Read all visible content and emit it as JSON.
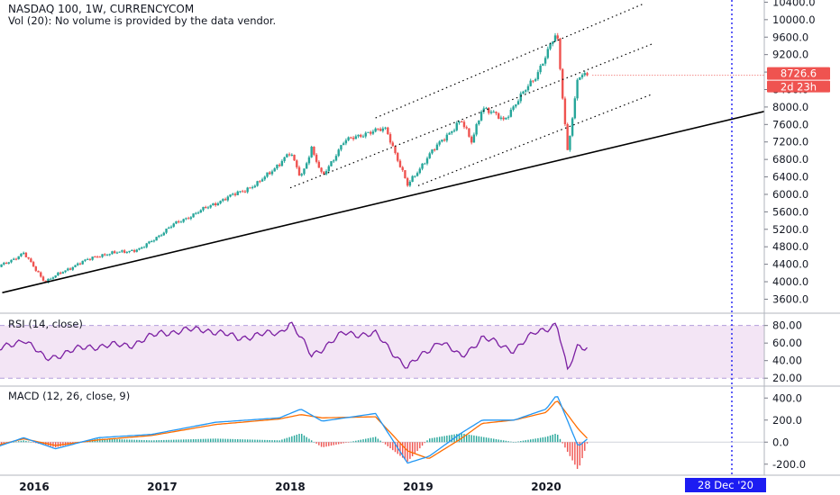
{
  "header": {
    "symbol_line": "NASDAQ 100, 1W, CURRENCYCOM",
    "vol_line": "Vol (20): No volume is provided by the data vendor."
  },
  "price_tag": {
    "value": "8726.6",
    "countdown": "2d 23h"
  },
  "cursor_date": "28 Dec '20",
  "rsi": {
    "label": "RSI (14, close)",
    "upper": 80,
    "lower": 20
  },
  "macd": {
    "label": "MACD (12, 26, close, 9)"
  },
  "colors": {
    "up": "#26a69a",
    "down": "#ef5350",
    "rsi_line": "#7b1fa2",
    "rsi_band": "#f3e5f5",
    "macd_line": "#2196f3",
    "signal_line": "#ff6d00",
    "price_tag": "#ef5350",
    "date_tag": "#1c1cf2"
  },
  "chart_data": [
    {
      "type": "candlestick",
      "title": "NASDAQ 100, 1W, CURRENCYCOM",
      "x_ticks": [
        "2016",
        "2017",
        "2018",
        "2019",
        "2020"
      ],
      "y_ticks": [
        "3600.0",
        "4000.0",
        "4400.0",
        "4800.0",
        "5200.0",
        "5600.0",
        "6000.0",
        "6400.0",
        "6800.0",
        "7200.0",
        "7600.0",
        "8000.0",
        "8400.0",
        "8800.0",
        "9200.0",
        "9600.0",
        "10000.0",
        "10400.0"
      ],
      "ylim": [
        3300,
        10450
      ],
      "approx_close_path": [
        [
          "2015-09",
          4250
        ],
        [
          "2015-12",
          4650
        ],
        [
          "2016-02",
          4000
        ],
        [
          "2016-05",
          4400
        ],
        [
          "2016-07",
          4600
        ],
        [
          "2016-11",
          4750
        ],
        [
          "2017-02",
          5300
        ],
        [
          "2017-06",
          5800
        ],
        [
          "2017-10",
          6250
        ],
        [
          "2018-01",
          6950
        ],
        [
          "2018-02",
          6400
        ],
        [
          "2018-03",
          7050
        ],
        [
          "2018-04",
          6400
        ],
        [
          "2018-06",
          7200
        ],
        [
          "2018-08",
          7400
        ],
        [
          "2018-10",
          7500
        ],
        [
          "2018-12",
          6200
        ],
        [
          "2019-02",
          6900
        ],
        [
          "2019-05",
          7700
        ],
        [
          "2019-06",
          7200
        ],
        [
          "2019-07",
          8000
        ],
        [
          "2019-09",
          7700
        ],
        [
          "2019-12",
          8700
        ],
        [
          "2020-02",
          9700
        ],
        [
          "2020-03",
          7000
        ],
        [
          "2020-04",
          8700
        ],
        [
          "2020-05",
          8726.6
        ]
      ],
      "trendlines": [
        {
          "style": "solid",
          "from": [
            "2015-10",
            3750
          ],
          "to": [
            "2020-12",
            7350
          ]
        },
        {
          "style": "dotted",
          "from": [
            "2018-09",
            7750
          ],
          "to": [
            "2020-10",
            10350
          ]
        },
        {
          "style": "dotted",
          "from": [
            "2018-01",
            6150
          ],
          "to": [
            "2020-11",
            9450
          ]
        },
        {
          "style": "dotted",
          "from": [
            "2019-01",
            6200
          ],
          "to": [
            "2020-11",
            8300
          ]
        }
      ]
    },
    {
      "type": "line",
      "title": "RSI (14, close)",
      "y_ticks": [
        "20.00",
        "40.00",
        "60.00",
        "80.00"
      ],
      "ylim": [
        12,
        93
      ],
      "series": [
        {
          "name": "RSI",
          "values": [
            {
              "x": "2015-09",
              "y": 48
            },
            {
              "x": "2015-12",
              "y": 65
            },
            {
              "x": "2016-02",
              "y": 42
            },
            {
              "x": "2016-06",
              "y": 56
            },
            {
              "x": "2016-10",
              "y": 58
            },
            {
              "x": "2017-01",
              "y": 72
            },
            {
              "x": "2017-05",
              "y": 76
            },
            {
              "x": "2017-08",
              "y": 66
            },
            {
              "x": "2017-12",
              "y": 72
            },
            {
              "x": "2018-01",
              "y": 84
            },
            {
              "x": "2018-03",
              "y": 46
            },
            {
              "x": "2018-06",
              "y": 71
            },
            {
              "x": "2018-09",
              "y": 70
            },
            {
              "x": "2018-12",
              "y": 32
            },
            {
              "x": "2019-03",
              "y": 63
            },
            {
              "x": "2019-05",
              "y": 44
            },
            {
              "x": "2019-07",
              "y": 66
            },
            {
              "x": "2019-10",
              "y": 52
            },
            {
              "x": "2019-12",
              "y": 72
            },
            {
              "x": "2020-02",
              "y": 82
            },
            {
              "x": "2020-03",
              "y": 27
            },
            {
              "x": "2020-04",
              "y": 58
            },
            {
              "x": "2020-05",
              "y": 55
            }
          ]
        }
      ]
    },
    {
      "type": "line",
      "title": "MACD (12, 26, close, 9)",
      "y_ticks": [
        "-200.0",
        "0.0",
        "200.0",
        "400.0"
      ],
      "ylim": [
        -300,
        500
      ],
      "series": [
        {
          "name": "MACD",
          "values": [
            {
              "x": "2015-09",
              "y": -60
            },
            {
              "x": "2015-12",
              "y": 40
            },
            {
              "x": "2016-03",
              "y": -60
            },
            {
              "x": "2016-07",
              "y": 40
            },
            {
              "x": "2016-12",
              "y": 70
            },
            {
              "x": "2017-06",
              "y": 180
            },
            {
              "x": "2017-12",
              "y": 220
            },
            {
              "x": "2018-02",
              "y": 300
            },
            {
              "x": "2018-04",
              "y": 190
            },
            {
              "x": "2018-09",
              "y": 260
            },
            {
              "x": "2018-12",
              "y": -190
            },
            {
              "x": "2019-02",
              "y": -130
            },
            {
              "x": "2019-05",
              "y": 80
            },
            {
              "x": "2019-07",
              "y": 200
            },
            {
              "x": "2019-10",
              "y": 200
            },
            {
              "x": "2020-01",
              "y": 300
            },
            {
              "x": "2020-02",
              "y": 430
            },
            {
              "x": "2020-04",
              "y": -40
            },
            {
              "x": "2020-05",
              "y": 40
            }
          ]
        },
        {
          "name": "Signal",
          "values": [
            {
              "x": "2015-09",
              "y": -40
            },
            {
              "x": "2015-12",
              "y": 30
            },
            {
              "x": "2016-03",
              "y": -30
            },
            {
              "x": "2016-07",
              "y": 20
            },
            {
              "x": "2016-12",
              "y": 60
            },
            {
              "x": "2017-06",
              "y": 160
            },
            {
              "x": "2017-12",
              "y": 210
            },
            {
              "x": "2018-02",
              "y": 250
            },
            {
              "x": "2018-04",
              "y": 220
            },
            {
              "x": "2018-09",
              "y": 230
            },
            {
              "x": "2018-12",
              "y": -80
            },
            {
              "x": "2019-02",
              "y": -150
            },
            {
              "x": "2019-05",
              "y": 30
            },
            {
              "x": "2019-07",
              "y": 170
            },
            {
              "x": "2019-10",
              "y": 200
            },
            {
              "x": "2020-01",
              "y": 270
            },
            {
              "x": "2020-02",
              "y": 380
            },
            {
              "x": "2020-04",
              "y": 120
            },
            {
              "x": "2020-05",
              "y": 20
            }
          ]
        }
      ]
    }
  ]
}
